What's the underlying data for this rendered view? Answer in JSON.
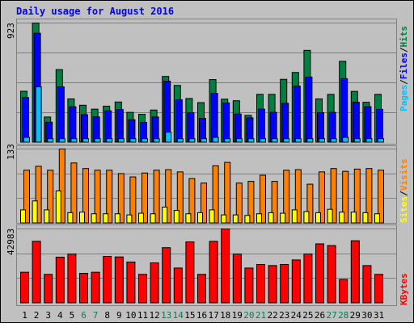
{
  "chart_data": [
    {
      "type": "bar",
      "title": "Daily usage for August 2016",
      "panel": "hits-files-pages",
      "categories": [
        "1",
        "2",
        "3",
        "4",
        "5",
        "6",
        "7",
        "8",
        "9",
        "10",
        "11",
        "12",
        "13",
        "14",
        "15",
        "16",
        "17",
        "18",
        "19",
        "20",
        "21",
        "22",
        "23",
        "24",
        "25",
        "26",
        "27",
        "28",
        "29",
        "30",
        "31"
      ],
      "weekend_days": [
        "6",
        "7",
        "13",
        "14",
        "20",
        "21",
        "27",
        "28"
      ],
      "ymax_label": "923",
      "ylim": [
        0,
        923
      ],
      "series": [
        {
          "name": "Hits",
          "color": "#008040",
          "values": [
            396,
            923,
            197,
            563,
            337,
            288,
            258,
            281,
            313,
            233,
            218,
            251,
            510,
            441,
            340,
            308,
            486,
            335,
            323,
            210,
            372,
            372,
            488,
            541,
            712,
            337,
            372,
            627,
            395,
            311,
            372
          ]
        },
        {
          "name": "Files",
          "color": "#0000ff",
          "values": [
            347,
            844,
            157,
            430,
            276,
            215,
            198,
            245,
            255,
            176,
            155,
            197,
            474,
            330,
            230,
            186,
            380,
            306,
            220,
            191,
            258,
            233,
            303,
            436,
            506,
            231,
            233,
            493,
            311,
            277,
            256
          ]
        },
        {
          "name": "Pages",
          "color": "#00c0ff",
          "values": [
            40,
            430,
            30,
            30,
            30,
            30,
            30,
            30,
            30,
            30,
            30,
            30,
            80,
            30,
            30,
            30,
            40,
            30,
            30,
            30,
            30,
            30,
            30,
            30,
            30,
            30,
            30,
            40,
            30,
            30,
            30
          ]
        }
      ]
    },
    {
      "type": "bar",
      "panel": "visits-sites",
      "categories": [
        "1",
        "2",
        "3",
        "4",
        "5",
        "6",
        "7",
        "8",
        "9",
        "10",
        "11",
        "12",
        "13",
        "14",
        "15",
        "16",
        "17",
        "18",
        "19",
        "20",
        "21",
        "22",
        "23",
        "24",
        "25",
        "26",
        "27",
        "28",
        "29",
        "30",
        "31"
      ],
      "ymax_label": "133",
      "ylim": [
        0,
        133
      ],
      "series": [
        {
          "name": "Visits",
          "color": "#ff8000",
          "values": [
            95,
            102,
            95,
            133,
            108,
            98,
            95,
            95,
            89,
            83,
            90,
            95,
            96,
            92,
            80,
            72,
            103,
            109,
            72,
            75,
            86,
            75,
            95,
            96,
            70,
            92,
            98,
            93,
            97,
            98,
            95
          ]
        },
        {
          "name": "Sites",
          "color": "#ffff00",
          "values": [
            24,
            40,
            24,
            58,
            19,
            20,
            17,
            17,
            17,
            15,
            18,
            17,
            29,
            23,
            17,
            19,
            24,
            15,
            15,
            14,
            17,
            19,
            18,
            24,
            21,
            19,
            25,
            20,
            20,
            19,
            17
          ]
        }
      ]
    },
    {
      "type": "bar",
      "panel": "kbytes",
      "categories": [
        "1",
        "2",
        "3",
        "4",
        "5",
        "6",
        "7",
        "8",
        "9",
        "10",
        "11",
        "12",
        "13",
        "14",
        "15",
        "16",
        "17",
        "18",
        "19",
        "20",
        "21",
        "22",
        "23",
        "24",
        "25",
        "26",
        "27",
        "28",
        "29",
        "30",
        "31"
      ],
      "ymax_label": "42983",
      "ylim": [
        0,
        42983
      ],
      "series": [
        {
          "name": "KBytes",
          "color": "#ff0000",
          "values": [
            17920,
            35820,
            16690,
            26660,
            28490,
            17280,
            17920,
            27100,
            26780,
            23830,
            16690,
            23340,
            32150,
            20360,
            35490,
            16690,
            35810,
            42983,
            28490,
            20360,
            22430,
            21790,
            22430,
            25050,
            28490,
            34360,
            33360,
            13740,
            36150,
            21790,
            16690
          ]
        }
      ]
    }
  ]
}
